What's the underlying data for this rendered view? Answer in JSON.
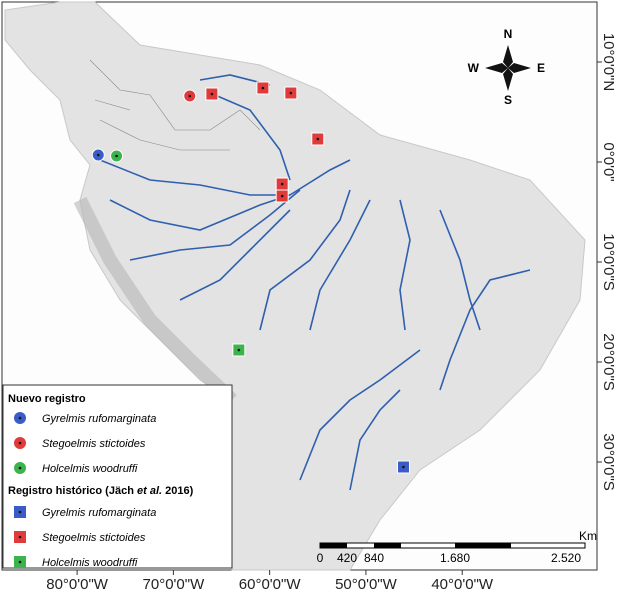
{
  "map": {
    "xlim": [
      -87.8,
      -26
    ],
    "ylim": [
      -40.8,
      16
    ],
    "xticks": [
      {
        "value": -80,
        "label": "80°0'0\"W"
      },
      {
        "value": -70,
        "label": "70°0'0\"W"
      },
      {
        "value": -60,
        "label": "60°0'0\"W"
      },
      {
        "value": -50,
        "label": "50°0'0\"W"
      },
      {
        "value": -40,
        "label": "40°0'0\"W"
      }
    ],
    "yticks": [
      {
        "value": 10,
        "label": "10°0'0\"N"
      },
      {
        "value": 0,
        "label": "0°0'0\""
      },
      {
        "value": -10,
        "label": "10°0'0\"S"
      },
      {
        "value": -20,
        "label": "20°0'0\"S"
      },
      {
        "value": -30,
        "label": "30°0'0\"S"
      }
    ],
    "compass": {
      "n": "N",
      "s": "S",
      "e": "E",
      "w": "W"
    },
    "scale_bar": {
      "labels": [
        "0",
        "420",
        "840",
        "1.680",
        "2.520"
      ],
      "unit": "Km"
    },
    "legend": {
      "new_title": "Nuevo registro",
      "historic_title": [
        "Registro histórico (Jäch ",
        "et al.",
        " 2016)"
      ]
    },
    "new_records": [
      {
        "species": "Gyrelmis rufomarginata",
        "color": "#3a5cc8",
        "points": [
          {
            "lon": -77.8,
            "lat": 0.7
          }
        ]
      },
      {
        "species": "Stegoelmis stictoides",
        "color": "#e03a3a",
        "points": [
          {
            "lon": -68.3,
            "lat": 6.6
          }
        ]
      },
      {
        "species": "Holcelmis woodruffi",
        "color": "#3cb44b",
        "points": [
          {
            "lon": -75.9,
            "lat": 0.6
          }
        ]
      }
    ],
    "historic_records": [
      {
        "species": "Gyrelmis rufomarginata",
        "color": "#3a5cc8",
        "points": [
          {
            "lon": -46.1,
            "lat": -30.5
          }
        ]
      },
      {
        "species": "Stegoelmis stictoides",
        "color": "#e03a3a",
        "points": [
          {
            "lon": -66.0,
            "lat": 6.8
          },
          {
            "lon": -60.7,
            "lat": 7.4
          },
          {
            "lon": -57.8,
            "lat": 6.9
          },
          {
            "lon": -55.0,
            "lat": 2.3
          },
          {
            "lon": -58.7,
            "lat": -2.2
          },
          {
            "lon": -58.7,
            "lat": -3.4
          }
        ]
      },
      {
        "species": "Holcelmis woodruffi",
        "color": "#3cb44b",
        "points": [
          {
            "lon": -63.2,
            "lat": -18.8
          }
        ]
      }
    ]
  }
}
